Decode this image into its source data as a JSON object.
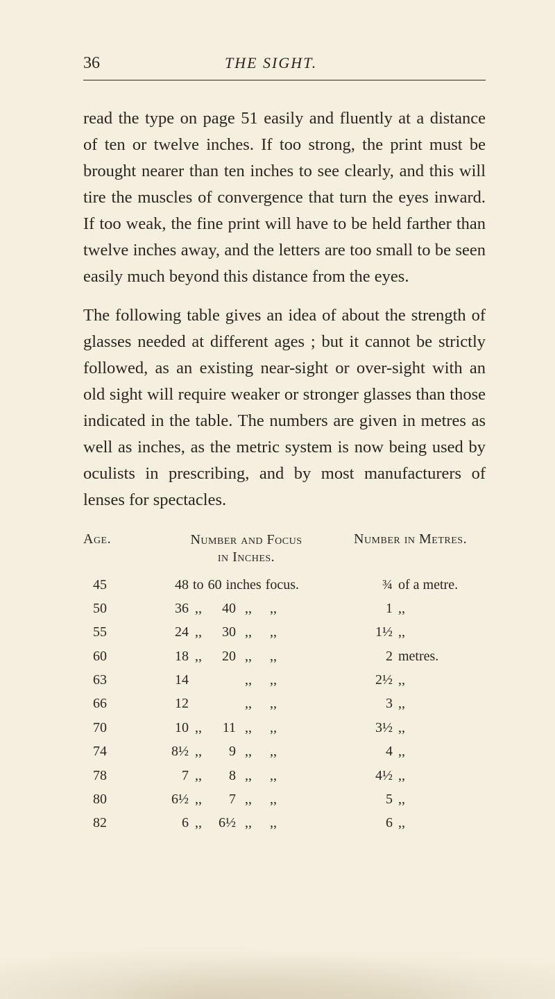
{
  "page_number": "36",
  "chapter_title": "THE SIGHT.",
  "paragraphs": [
    "read the type on page 51 easily and fluently at a distance of ten or twelve inches. If too strong, the print must be brought nearer than ten inches to see clearly, and this will tire the muscles of convergence that turn the eyes inward. If too weak, the fine print will have to be held farther than twelve inches away, and the letters are too small to be seen easily much beyond this distance from the eyes.",
    "The following table gives an idea of about the strength of glasses needed at different ages ; but it cannot be strictly followed, as an existing near-sight or over-sight with an old sight will require weaker or stronger glasses than those indicated in the table. The numbers are given in metres as well as inches, as the metric system is now being used by oculists in prescribing, and by most manufacturers of lenses for spectacles."
  ],
  "table": {
    "type": "table",
    "headers": {
      "age": "Age.",
      "focus_line1": "Number and Focus",
      "focus_line2": "in Inches.",
      "metres": "Number in Metres."
    },
    "rows": [
      {
        "age": "45",
        "fa": "48",
        "sep1": "to",
        "fb": "60",
        "sep2": "inches",
        "sep3": "",
        "word": "focus.",
        "mv": "¾",
        "mu": "of a metre."
      },
      {
        "age": "50",
        "fa": "36",
        "sep1": ",,",
        "fb": "40",
        "sep2": ",,",
        "sep3": ",,",
        "word": "",
        "mv": "1",
        "mu": ",,"
      },
      {
        "age": "55",
        "fa": "24",
        "sep1": ",,",
        "fb": "30",
        "sep2": ",,",
        "sep3": ",,",
        "word": "",
        "mv": "1½",
        "mu": ",,"
      },
      {
        "age": "60",
        "fa": "18",
        "sep1": ",,",
        "fb": "20",
        "sep2": ",,",
        "sep3": ",,",
        "word": "",
        "mv": "2",
        "mu": "metres."
      },
      {
        "age": "63",
        "fa": "14",
        "sep1": "",
        "fb": "",
        "sep2": ",,",
        "sep3": ",,",
        "word": "",
        "mv": "2½",
        "mu": ",,"
      },
      {
        "age": "66",
        "fa": "12",
        "sep1": "",
        "fb": "",
        "sep2": ",,",
        "sep3": ",,",
        "word": "",
        "mv": "3",
        "mu": ",,"
      },
      {
        "age": "70",
        "fa": "10",
        "sep1": ",,",
        "fb": "11",
        "sep2": ",,",
        "sep3": ",,",
        "word": "",
        "mv": "3½",
        "mu": ",,"
      },
      {
        "age": "74",
        "fa": "8½",
        "sep1": ",,",
        "fb": "9",
        "sep2": ",,",
        "sep3": ",,",
        "word": "",
        "mv": "4",
        "mu": ",,"
      },
      {
        "age": "78",
        "fa": "7",
        "sep1": ",,",
        "fb": "8",
        "sep2": ",,",
        "sep3": ",,",
        "word": "",
        "mv": "4½",
        "mu": ",,"
      },
      {
        "age": "80",
        "fa": "6½",
        "sep1": ",,",
        "fb": "7",
        "sep2": ",,",
        "sep3": ",,",
        "word": "",
        "mv": "5",
        "mu": ",,"
      },
      {
        "age": "82",
        "fa": "6",
        "sep1": ",,",
        "fb": "6½",
        "sep2": ",,",
        "sep3": ",,",
        "word": "",
        "mv": "6",
        "mu": ",,"
      }
    ]
  },
  "colors": {
    "page_bg": "#f5efe0",
    "text": "#2a2520"
  }
}
